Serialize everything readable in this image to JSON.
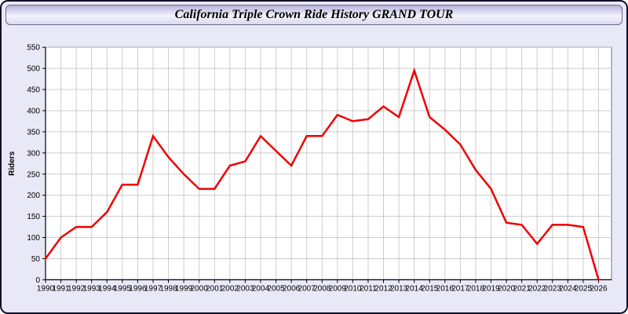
{
  "window": {
    "title": "California Triple Crown Ride History GRAND TOUR"
  },
  "colors": {
    "page_background": "#e8e8f7",
    "plot_background": "#ffffff",
    "grid": "#cccccc",
    "axis": "#000000",
    "plot_frame": "#777777",
    "line": "#ee0000",
    "window_border": "#10102a"
  },
  "chart_data": {
    "type": "line",
    "title": "California Triple Crown Ride History GRAND TOUR",
    "xlabel": "",
    "ylabel": "Riders",
    "x": [
      1990,
      1991,
      1992,
      1993,
      1994,
      1995,
      1996,
      1997,
      1998,
      1999,
      2000,
      2001,
      2002,
      2003,
      2004,
      2005,
      2006,
      2007,
      2008,
      2009,
      2010,
      2011,
      2012,
      2013,
      2014,
      2015,
      2016,
      2017,
      2018,
      2019,
      2020,
      2021,
      2022,
      2023,
      2024,
      2025,
      2026
    ],
    "series": [
      {
        "name": "Riders",
        "color": "#ee0000",
        "values": [
          50,
          100,
          125,
          125,
          160,
          225,
          225,
          340,
          290,
          250,
          215,
          215,
          270,
          280,
          340,
          305,
          270,
          340,
          340,
          390,
          375,
          380,
          410,
          385,
          495,
          385,
          355,
          320,
          260,
          215,
          135,
          130,
          85,
          130,
          130,
          125,
          0
        ]
      }
    ],
    "ylim": [
      0,
      550
    ],
    "ytick_step": 50,
    "grid": true,
    "legend_position": "none",
    "line_width": 2.5
  }
}
